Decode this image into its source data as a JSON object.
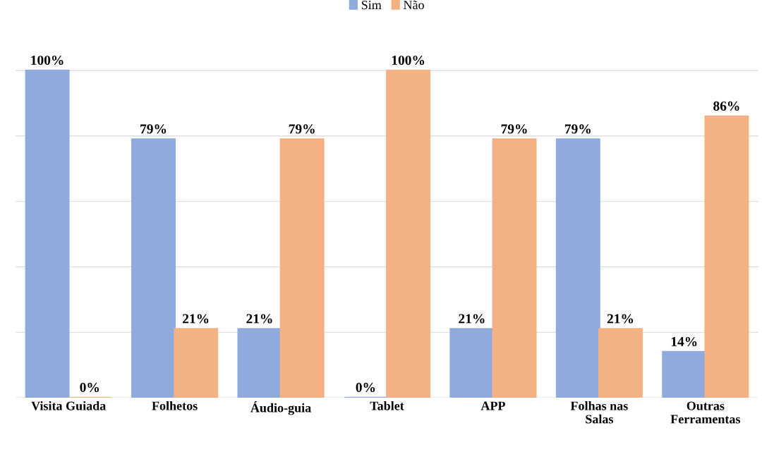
{
  "chart_data": {
    "type": "bar",
    "categories": [
      "Visita Guiada",
      "Folhetos",
      "Áudio-guia",
      "Tablet",
      "APP",
      "Folhas nas\nSalas",
      "Outras\nFerramentas"
    ],
    "series": [
      {
        "name": "Sim",
        "color": "#8faadc",
        "values": [
          100,
          79,
          21,
          0,
          21,
          79,
          14
        ],
        "value_labels": [
          "100%",
          "79%",
          "21%",
          "0%",
          "21%",
          "79%",
          "14%"
        ]
      },
      {
        "name": "Não",
        "color": "#f4b183",
        "values": [
          0,
          21,
          79,
          100,
          79,
          21,
          86
        ],
        "value_labels": [
          "0%",
          "21%",
          "79%",
          "100%",
          "79%",
          "21%",
          "86%"
        ]
      }
    ],
    "grid": "y",
    "legend": "top",
    "tick_labels": "x"
  }
}
